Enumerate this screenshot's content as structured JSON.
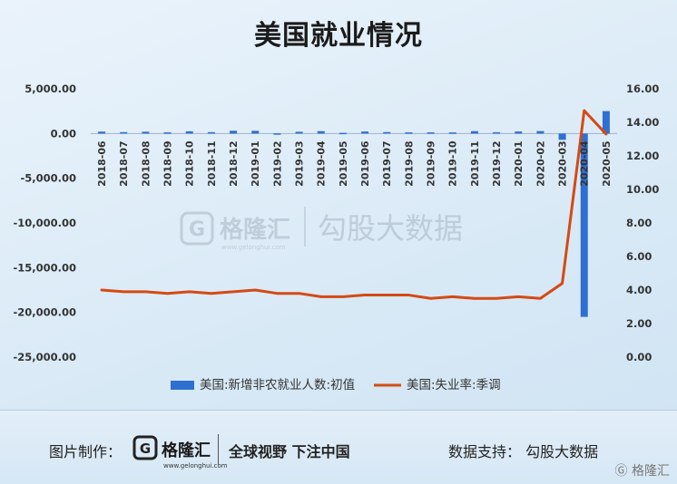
{
  "page": {
    "title": "美国就业情况"
  },
  "watermark": {
    "brand": "格隆汇",
    "domain": "www.gelonghui.com",
    "source": "勾股大数据"
  },
  "footer": {
    "made_by_label": "图片制作：",
    "brand": "格隆汇",
    "domain": "www.gelonghui.com",
    "slogan": "全球视野 下注中国",
    "data_support": "数据支持：  勾股大数据",
    "corner_brand": "格隆汇"
  },
  "chart_data": {
    "type": "bar",
    "title": "美国就业情况",
    "categories": [
      "2018-06",
      "2018-07",
      "2018-08",
      "2018-09",
      "2018-10",
      "2018-11",
      "2018-12",
      "2019-01",
      "2019-02",
      "2019-03",
      "2019-04",
      "2019-05",
      "2019-06",
      "2019-07",
      "2019-08",
      "2019-09",
      "2019-10",
      "2019-11",
      "2019-12",
      "2020-01",
      "2020-02",
      "2020-03",
      "2020-04",
      "2020-05"
    ],
    "series": [
      {
        "name": "美国:新增非农就业人数:初值",
        "type": "bar",
        "axis": "left",
        "color": "#2f6fcf",
        "values": [
          213,
          157,
          201,
          134,
          250,
          155,
          312,
          304,
          20,
          196,
          263,
          75,
          224,
          164,
          130,
          136,
          128,
          266,
          145,
          225,
          273,
          -701,
          -20500,
          2509
        ]
      },
      {
        "name": "美国:失业率:季调",
        "type": "line",
        "axis": "right",
        "color": "#d44a14",
        "values": [
          4.0,
          3.9,
          3.9,
          3.8,
          3.9,
          3.8,
          3.9,
          4.0,
          3.8,
          3.8,
          3.6,
          3.6,
          3.7,
          3.7,
          3.7,
          3.5,
          3.6,
          3.5,
          3.5,
          3.6,
          3.5,
          4.4,
          14.7,
          13.3
        ]
      }
    ],
    "y_left": {
      "ylim": [
        -25000,
        5000
      ],
      "ticks": [
        5000,
        0,
        -5000,
        -10000,
        -15000,
        -20000,
        -25000
      ],
      "tick_labels": [
        "5,000.00",
        "0.00",
        "-5,000.00",
        "-10,000.00",
        "-15,000.00",
        "-20,000.00",
        "-25,000.00"
      ]
    },
    "y_right": {
      "ylim": [
        0,
        16
      ],
      "ticks": [
        16,
        14,
        12,
        10,
        8,
        6,
        4,
        2,
        0
      ],
      "tick_labels": [
        "16.00",
        "14.00",
        "12.00",
        "10.00",
        "8.00",
        "6.00",
        "4.00",
        "2.00",
        "0.00"
      ]
    },
    "legend_position": "bottom",
    "grid": false
  }
}
